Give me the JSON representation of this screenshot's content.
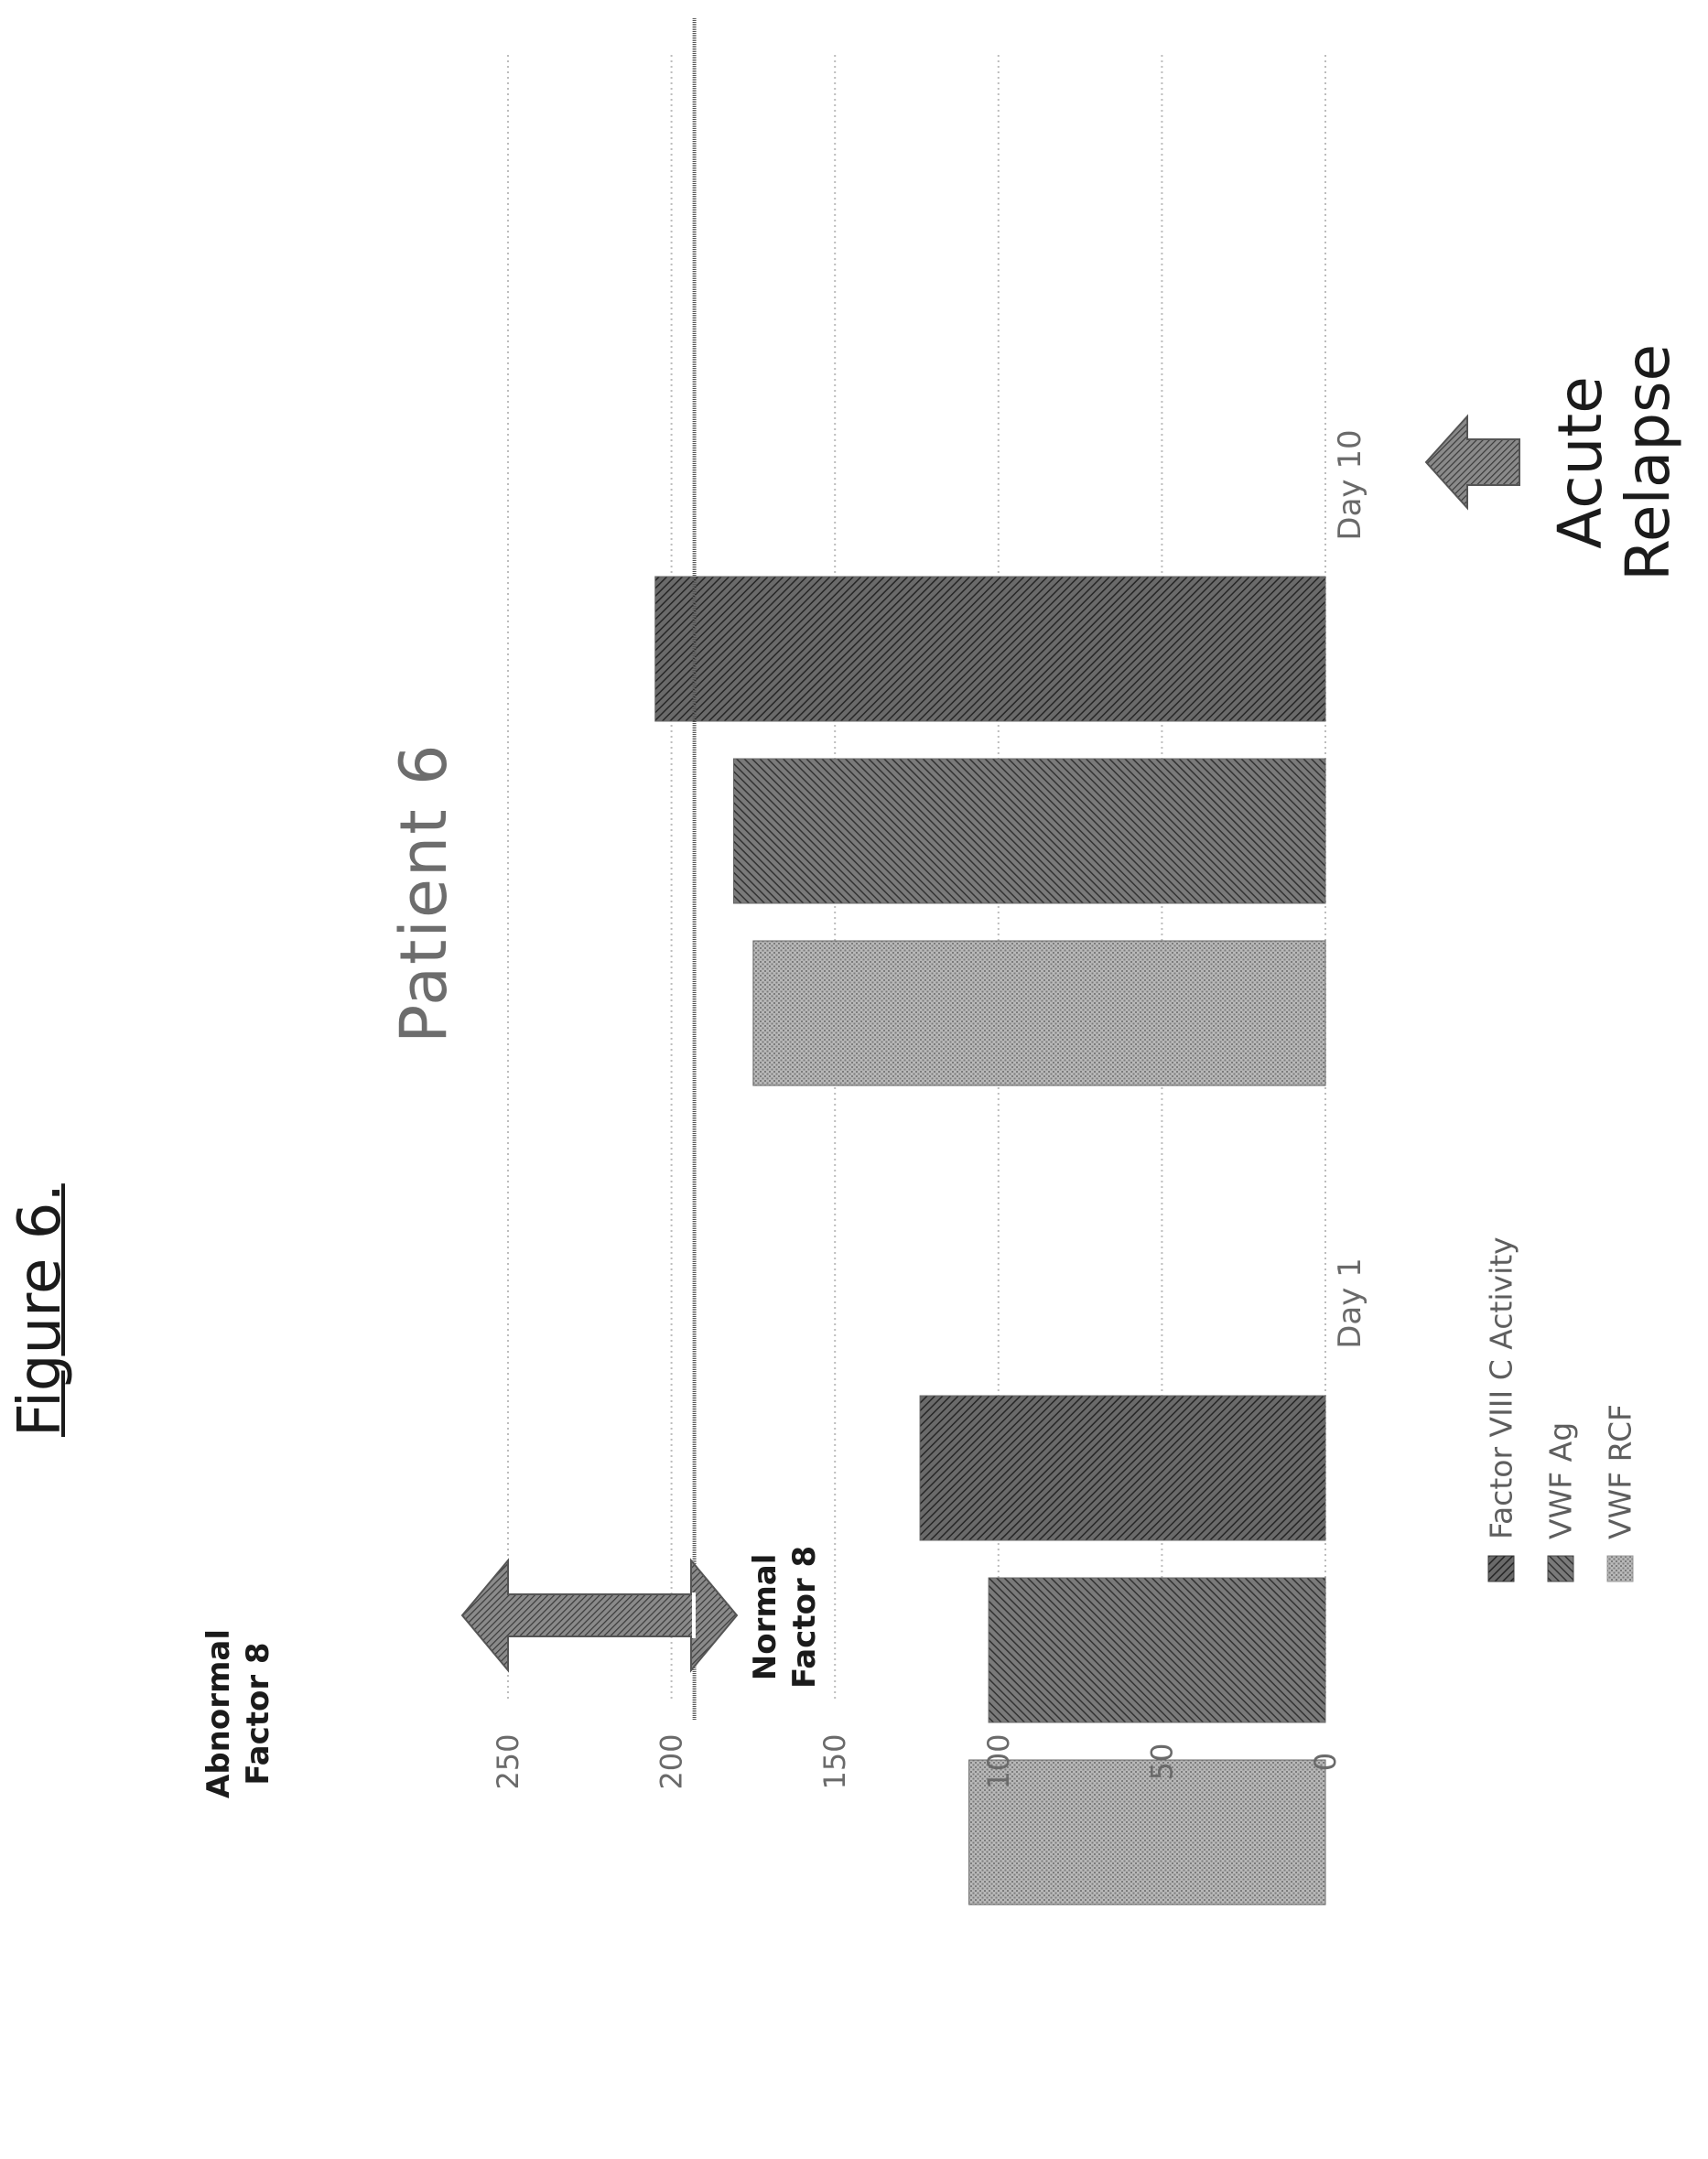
{
  "figure_label": "Figure 6.",
  "chart_data": {
    "type": "bar",
    "title": "Patient 6",
    "categories": [
      "Day 1",
      "Day 10"
    ],
    "series": [
      {
        "name": "Factor VIII C Activity",
        "values": [
          124,
          205
        ],
        "color": "#3a3a3a"
      },
      {
        "name": "VWF Ag",
        "values": [
          103,
          181
        ],
        "color": "#4a4a4a"
      },
      {
        "name": "VWF RCF",
        "values": [
          109,
          175
        ],
        "color": "#9a9a9a"
      }
    ],
    "yticks": [
      0,
      50,
      100,
      150,
      200,
      250
    ],
    "ylim": [
      0,
      250
    ],
    "xlabel": "",
    "ylabel": "",
    "grid": true,
    "reference_line": {
      "value": 193
    },
    "legend_position": "bottom"
  },
  "annotations": {
    "abnormal_label": "Abnormal\nFactor 8",
    "normal_label": "Normal\nFactor 8",
    "acute_relapse_label": "Acute\nRelapse",
    "acute_relapse_category": "Day 10"
  }
}
